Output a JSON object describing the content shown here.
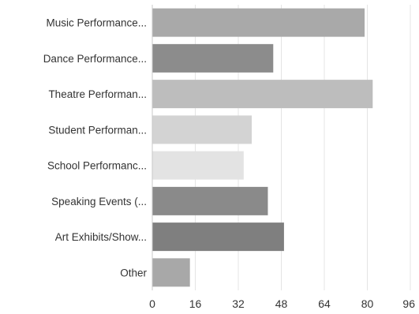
{
  "chart_data": {
    "type": "bar",
    "orientation": "horizontal",
    "categories": [
      "Music Performance...",
      "Dance Performance...",
      "Theatre Performan...",
      "Student Performan...",
      "School Performanc...",
      "Speaking Events (...",
      "Art Exhibits/Show...",
      "Other"
    ],
    "values": [
      79,
      45,
      82,
      37,
      34,
      43,
      49,
      14
    ],
    "bar_colors": [
      "#a9a9a9",
      "#8c8c8c",
      "#bdbdbd",
      "#d3d3d3",
      "#e3e3e3",
      "#8a8a8a",
      "#7f7f7f",
      "#a8a8a8"
    ],
    "xlim": [
      0,
      96
    ],
    "xticks": [
      "0",
      "16",
      "32",
      "48",
      "64",
      "80",
      "96"
    ],
    "grid": true,
    "title": "",
    "xlabel": "",
    "ylabel": ""
  }
}
